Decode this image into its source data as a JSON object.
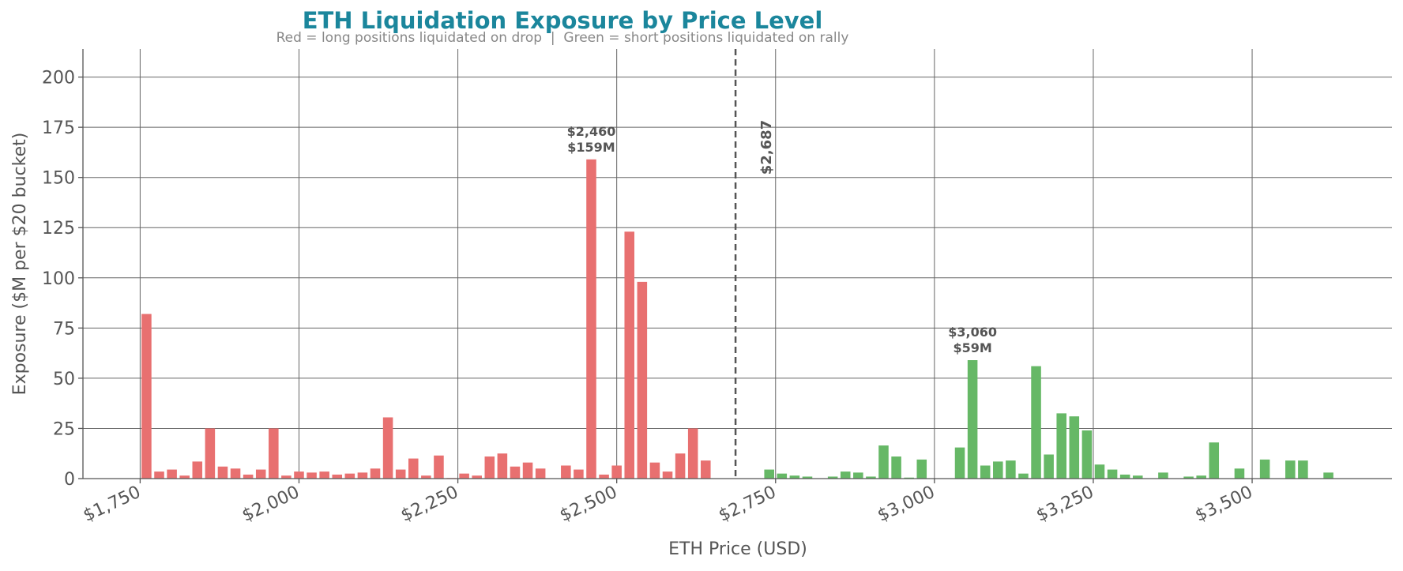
{
  "chart_data": {
    "type": "bar",
    "title": "ETH Liquidation Exposure by Price Level",
    "subtitle": "Red = long positions liquidated on drop  |  Green = short positions liquidated on rally",
    "xlabel": "ETH Price (USD)",
    "ylabel": "Exposure ($M per $20 bucket)",
    "xlim": [
      1660,
      3720
    ],
    "ylim": [
      0,
      214
    ],
    "xticks": [
      1750,
      2000,
      2250,
      2500,
      2750,
      3000,
      3250,
      3500
    ],
    "xtick_labels": [
      "$1,750",
      "$2,000",
      "$2,250",
      "$2,500",
      "$2,750",
      "$3,000",
      "$3,250",
      "$3,500"
    ],
    "yticks": [
      0,
      25,
      50,
      75,
      100,
      125,
      150,
      175,
      200
    ],
    "ytick_labels": [
      "0",
      "25",
      "50",
      "75",
      "100",
      "125",
      "150",
      "175",
      "200"
    ],
    "bucket_width": 20,
    "grid": true,
    "colors": {
      "long": "#e87070",
      "short": "#66b866",
      "title": "#1b869c"
    },
    "current_price": {
      "value": 2687,
      "label": "$2,687"
    },
    "annotations": [
      {
        "x": 2460,
        "y": 159,
        "price_label": "$2,460",
        "value_label": "$159M"
      },
      {
        "x": 3060,
        "y": 59,
        "price_label": "$3,060",
        "value_label": "$59M"
      }
    ],
    "series": [
      {
        "name": "long",
        "x": [
          1760,
          1780,
          1800,
          1820,
          1840,
          1860,
          1880,
          1900,
          1920,
          1940,
          1960,
          1980,
          2000,
          2020,
          2040,
          2060,
          2080,
          2100,
          2120,
          2140,
          2160,
          2180,
          2200,
          2220,
          2240,
          2260,
          2280,
          2300,
          2320,
          2340,
          2360,
          2380,
          2400,
          2420,
          2440,
          2460,
          2480,
          2500,
          2520,
          2540,
          2560,
          2580,
          2600,
          2620,
          2640,
          2660
        ],
        "values": [
          82,
          3.5,
          4.5,
          1.5,
          8.5,
          25,
          6,
          5,
          2,
          4.5,
          25,
          1.5,
          3.5,
          3,
          3.5,
          2,
          2.5,
          3,
          5,
          30.5,
          4.5,
          10,
          1.5,
          11.5,
          0.3,
          2.5,
          1.5,
          11,
          12.5,
          6,
          8,
          5,
          0,
          6.5,
          4.5,
          159,
          2,
          6.5,
          123,
          98,
          8,
          3.5,
          12.5,
          25,
          9,
          0
        ]
      },
      {
        "name": "short",
        "x": [
          2700,
          2720,
          2740,
          2760,
          2780,
          2800,
          2820,
          2840,
          2860,
          2880,
          2900,
          2920,
          2940,
          2960,
          2980,
          3000,
          3020,
          3040,
          3060,
          3080,
          3100,
          3120,
          3140,
          3160,
          3180,
          3200,
          3220,
          3240,
          3260,
          3280,
          3300,
          3320,
          3340,
          3360,
          3380,
          3400,
          3420,
          3440,
          3460,
          3480,
          3500,
          3520,
          3540,
          3560,
          3580,
          3600,
          3620
        ],
        "values": [
          0,
          0,
          4.5,
          2.5,
          1.5,
          1,
          0,
          1,
          3.5,
          3,
          1,
          16.5,
          11,
          0.5,
          9.5,
          0,
          0,
          15.5,
          59,
          6.5,
          8.5,
          9,
          2.5,
          56,
          12,
          32.5,
          31,
          24,
          7,
          4.5,
          2,
          1.5,
          0,
          3,
          0,
          1,
          1.5,
          18,
          0,
          5,
          0,
          9.5,
          0,
          9,
          9,
          0,
          3
        ]
      }
    ]
  }
}
